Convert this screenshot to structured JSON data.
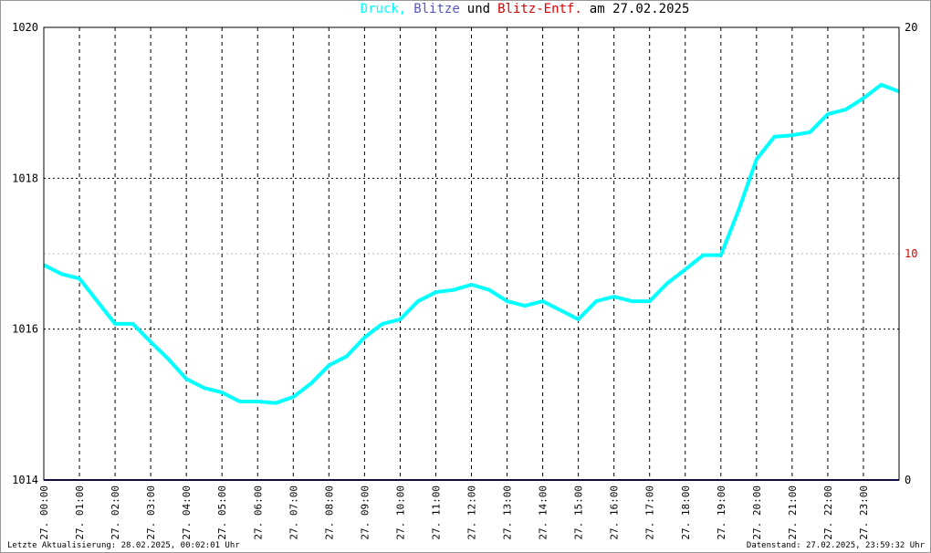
{
  "chart_data": {
    "type": "line",
    "title_parts": [
      {
        "text": "Druck,",
        "color": "#00ffff"
      },
      {
        "text": "Blitze",
        "color": "#5555cc"
      },
      {
        "text": "und",
        "color": "#000000"
      },
      {
        "text": "Blitz-Entf.",
        "color": "#dd0000"
      },
      {
        "text": "am 27.02.2025",
        "color": "#000000"
      }
    ],
    "footer_left": "Letzte Aktualisierung: 28.02.2025, 00:02:01 Uhr",
    "footer_right": "Datenstand: 27.02.2025, 23:59:32 Uhr",
    "xlim": [
      0,
      24
    ],
    "xticks": [
      {
        "value": 0,
        "label": "27. 00:00"
      },
      {
        "value": 1,
        "label": "27. 01:00"
      },
      {
        "value": 2,
        "label": "27. 02:00"
      },
      {
        "value": 3,
        "label": "27. 03:00"
      },
      {
        "value": 4,
        "label": "27. 04:00"
      },
      {
        "value": 5,
        "label": "27. 05:00"
      },
      {
        "value": 6,
        "label": "27. 06:00"
      },
      {
        "value": 7,
        "label": "27. 07:00"
      },
      {
        "value": 8,
        "label": "27. 08:00"
      },
      {
        "value": 9,
        "label": "27. 09:00"
      },
      {
        "value": 10,
        "label": "27. 10:00"
      },
      {
        "value": 11,
        "label": "27. 11:00"
      },
      {
        "value": 12,
        "label": "27. 12:00"
      },
      {
        "value": 13,
        "label": "27. 13:00"
      },
      {
        "value": 14,
        "label": "27. 14:00"
      },
      {
        "value": 15,
        "label": "27. 15:00"
      },
      {
        "value": 16,
        "label": "27. 16:00"
      },
      {
        "value": 17,
        "label": "27. 17:00"
      },
      {
        "value": 18,
        "label": "27. 18:00"
      },
      {
        "value": 19,
        "label": "27. 19:00"
      },
      {
        "value": 20,
        "label": "27. 20:00"
      },
      {
        "value": 21,
        "label": "27. 21:00"
      },
      {
        "value": 22,
        "label": "27. 22:00"
      },
      {
        "value": 23,
        "label": "27. 23:00"
      }
    ],
    "ylim": [
      1014,
      1020
    ],
    "yticks": [
      1014,
      1016,
      1018,
      1020
    ],
    "y2lim": [
      0,
      20
    ],
    "y2ticks": [
      0,
      10,
      20
    ],
    "y2tick_colors": [
      "#000000",
      "#dd0000",
      "#000000"
    ],
    "grid": true,
    "series": [
      {
        "name": "Druck",
        "color": "#00ffff",
        "x": [
          0,
          0.5,
          1,
          1.5,
          2,
          2.5,
          3,
          3.5,
          4,
          4.5,
          5,
          5.5,
          6,
          6.5,
          7,
          7.5,
          8,
          8.5,
          9,
          9.5,
          10,
          10.5,
          11,
          11.5,
          12,
          12.5,
          13,
          13.5,
          14,
          14.5,
          15,
          15.5,
          16,
          16.5,
          17,
          17.5,
          18,
          18.5,
          19,
          19.5,
          20,
          20.5,
          21,
          21.5,
          22,
          22.5,
          23,
          23.5,
          24
        ],
        "values": [
          1016.85,
          1016.73,
          1016.67,
          1016.37,
          1016.07,
          1016.07,
          1015.83,
          1015.6,
          1015.34,
          1015.22,
          1015.16,
          1015.04,
          1015.04,
          1015.02,
          1015.1,
          1015.28,
          1015.52,
          1015.64,
          1015.89,
          1016.07,
          1016.13,
          1016.37,
          1016.49,
          1016.52,
          1016.59,
          1016.52,
          1016.37,
          1016.31,
          1016.37,
          1016.25,
          1016.13,
          1016.37,
          1016.43,
          1016.37,
          1016.37,
          1016.61,
          1016.79,
          1016.98,
          1016.98,
          1017.58,
          1018.25,
          1018.55,
          1018.57,
          1018.61,
          1018.85,
          1018.91,
          1019.06,
          1019.24,
          1019.15
        ]
      },
      {
        "name": "Blitze",
        "color": "#1a1a80",
        "axis": "y2",
        "x": [
          0,
          24
        ],
        "values": [
          0,
          0
        ]
      }
    ]
  }
}
